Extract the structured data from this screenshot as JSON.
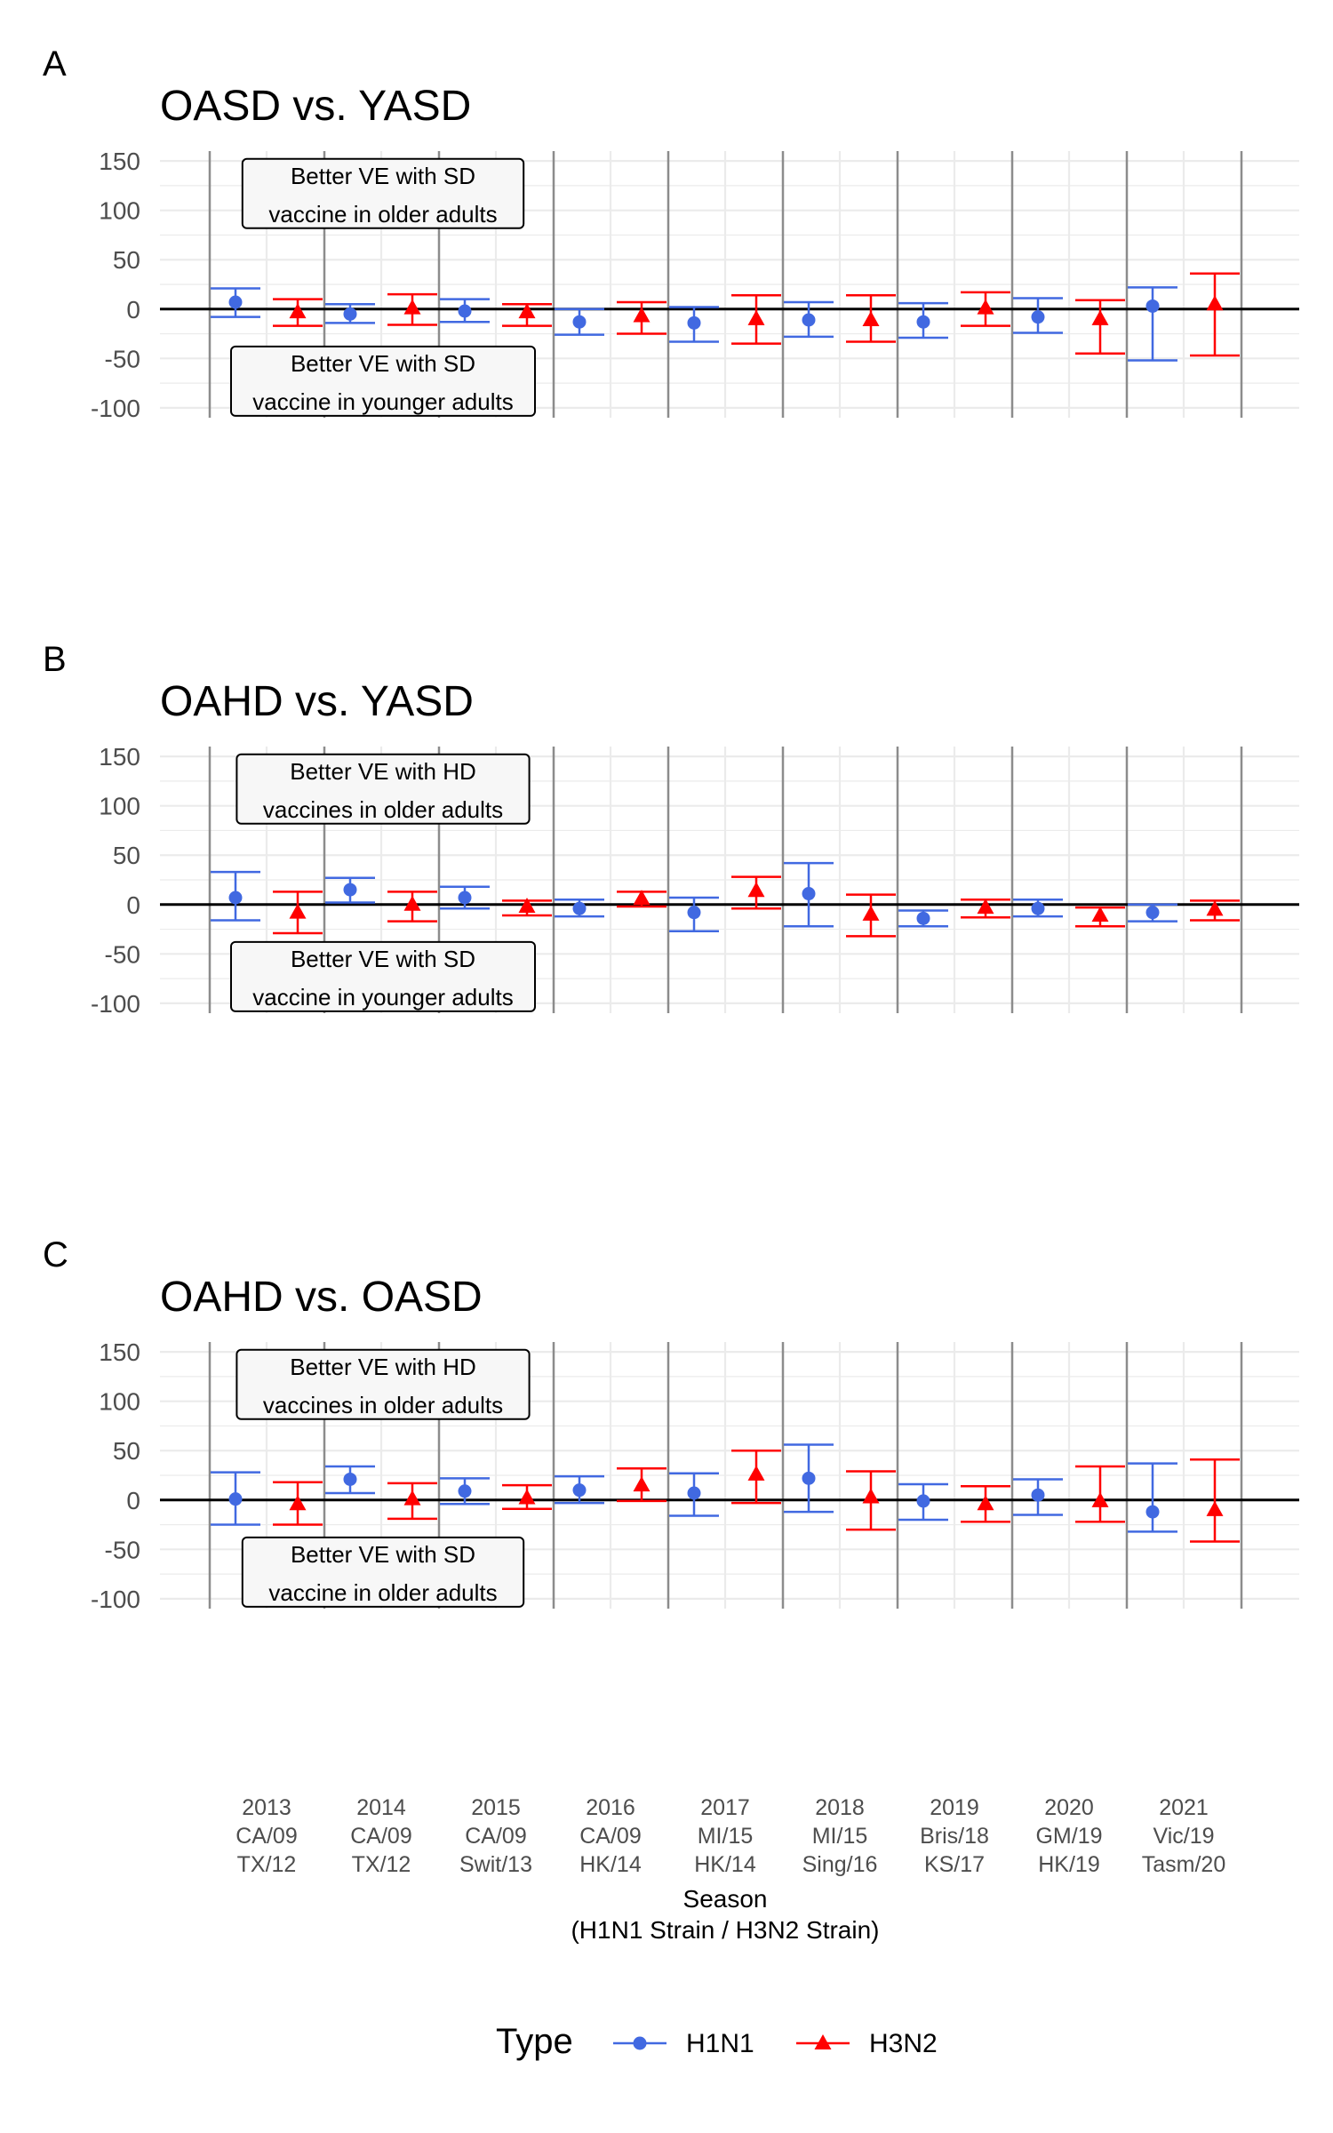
{
  "chart_data": [
    {
      "type": "errorbar",
      "panel_label": "A",
      "title": "OASD vs. YASD",
      "ylim": [
        -110,
        160
      ],
      "yticks": [
        150,
        100,
        50,
        0,
        -50,
        -100
      ],
      "annotations": [
        {
          "lines": [
            "Better VE with SD",
            "vaccine in older adults"
          ],
          "position": "top"
        },
        {
          "lines": [
            "Better VE with SD",
            "vaccine in younger adults"
          ],
          "position": "bottom"
        }
      ],
      "series": [
        {
          "name": "H1N1",
          "points": [
            {
              "est": 7,
              "lo": -8,
              "hi": 21
            },
            {
              "est": -5,
              "lo": -14,
              "hi": 5
            },
            {
              "est": -2,
              "lo": -13,
              "hi": 10
            },
            {
              "est": -13,
              "lo": -26,
              "hi": 0
            },
            {
              "est": -14,
              "lo": -33,
              "hi": 2
            },
            {
              "est": -11,
              "lo": -28,
              "hi": 7
            },
            {
              "est": -13,
              "lo": -29,
              "hi": 6
            },
            {
              "est": -8,
              "lo": -24,
              "hi": 11
            },
            {
              "est": 3,
              "lo": -52,
              "hi": 22
            }
          ]
        },
        {
          "name": "H3N2",
          "points": [
            {
              "est": -3,
              "lo": -17,
              "hi": 10
            },
            {
              "est": 1,
              "lo": -16,
              "hi": 15
            },
            {
              "est": -3,
              "lo": -17,
              "hi": 5
            },
            {
              "est": -7,
              "lo": -25,
              "hi": 7
            },
            {
              "est": -10,
              "lo": -35,
              "hi": 14
            },
            {
              "est": -11,
              "lo": -33,
              "hi": 14
            },
            {
              "est": 1,
              "lo": -17,
              "hi": 17
            },
            {
              "est": -10,
              "lo": -45,
              "hi": 9
            },
            {
              "est": 5,
              "lo": -47,
              "hi": 36
            }
          ]
        }
      ]
    },
    {
      "type": "errorbar",
      "panel_label": "B",
      "title": "OAHD vs. YASD",
      "ylim": [
        -110,
        160
      ],
      "yticks": [
        150,
        100,
        50,
        0,
        -50,
        -100
      ],
      "annotations": [
        {
          "lines": [
            "Better VE with HD",
            "vaccines in older adults"
          ],
          "position": "top"
        },
        {
          "lines": [
            "Better VE with SD",
            "vaccine in younger adults"
          ],
          "position": "bottom"
        }
      ],
      "series": [
        {
          "name": "H1N1",
          "points": [
            {
              "est": 7,
              "lo": -16,
              "hi": 33
            },
            {
              "est": 15,
              "lo": 2,
              "hi": 27
            },
            {
              "est": 7,
              "lo": -4,
              "hi": 18
            },
            {
              "est": -4,
              "lo": -12,
              "hi": 5
            },
            {
              "est": -8,
              "lo": -27,
              "hi": 7
            },
            {
              "est": 11,
              "lo": -22,
              "hi": 42
            },
            {
              "est": -14,
              "lo": -22,
              "hi": -6
            },
            {
              "est": -4,
              "lo": -12,
              "hi": 5
            },
            {
              "est": -8,
              "lo": -17,
              "hi": 0
            }
          ]
        },
        {
          "name": "H3N2",
          "points": [
            {
              "est": -8,
              "lo": -29,
              "hi": 13
            },
            {
              "est": 0,
              "lo": -17,
              "hi": 13
            },
            {
              "est": -2,
              "lo": -11,
              "hi": 4
            },
            {
              "est": 6,
              "lo": -2,
              "hi": 13
            },
            {
              "est": 14,
              "lo": -4,
              "hi": 28
            },
            {
              "est": -10,
              "lo": -32,
              "hi": 10
            },
            {
              "est": -3,
              "lo": -13,
              "hi": 5
            },
            {
              "est": -11,
              "lo": -22,
              "hi": -3
            },
            {
              "est": -5,
              "lo": -16,
              "hi": 4
            }
          ]
        }
      ]
    },
    {
      "type": "errorbar",
      "panel_label": "C",
      "title": "OAHD vs. OASD",
      "ylim": [
        -110,
        160
      ],
      "yticks": [
        150,
        100,
        50,
        0,
        -50,
        -100
      ],
      "annotations": [
        {
          "lines": [
            "Better VE with HD",
            "vaccines in older adults"
          ],
          "position": "top"
        },
        {
          "lines": [
            "Better VE with SD",
            "vaccine in older adults"
          ],
          "position": "bottom"
        }
      ],
      "series": [
        {
          "name": "H1N1",
          "points": [
            {
              "est": 1,
              "lo": -25,
              "hi": 28
            },
            {
              "est": 21,
              "lo": 7,
              "hi": 34
            },
            {
              "est": 9,
              "lo": -4,
              "hi": 22
            },
            {
              "est": 10,
              "lo": -3,
              "hi": 24
            },
            {
              "est": 7,
              "lo": -16,
              "hi": 27
            },
            {
              "est": 22,
              "lo": -12,
              "hi": 56
            },
            {
              "est": -1,
              "lo": -20,
              "hi": 16
            },
            {
              "est": 5,
              "lo": -15,
              "hi": 21
            },
            {
              "est": -12,
              "lo": -32,
              "hi": 37
            }
          ]
        },
        {
          "name": "H3N2",
          "points": [
            {
              "est": -4,
              "lo": -25,
              "hi": 18
            },
            {
              "est": 1,
              "lo": -19,
              "hi": 17
            },
            {
              "est": 2,
              "lo": -9,
              "hi": 15
            },
            {
              "est": 15,
              "lo": -1,
              "hi": 32
            },
            {
              "est": 26,
              "lo": -3,
              "hi": 50
            },
            {
              "est": 3,
              "lo": -30,
              "hi": 29
            },
            {
              "est": -4,
              "lo": -22,
              "hi": 14
            },
            {
              "est": -1,
              "lo": -22,
              "hi": 34
            },
            {
              "est": -10,
              "lo": -42,
              "hi": 41
            }
          ]
        }
      ]
    }
  ],
  "x_axis": {
    "categories": [
      [
        "2013",
        "CA/09",
        "TX/12"
      ],
      [
        "2014",
        "CA/09",
        "TX/12"
      ],
      [
        "2015",
        "CA/09",
        "Swit/13"
      ],
      [
        "2016",
        "CA/09",
        "HK/14"
      ],
      [
        "2017",
        "MI/15",
        "HK/14"
      ],
      [
        "2018",
        "MI/15",
        "Sing/16"
      ],
      [
        "2019",
        "Bris/18",
        "KS/17"
      ],
      [
        "2020",
        "GM/19",
        "HK/19"
      ],
      [
        "2021",
        "Vic/19",
        "Tasm/20"
      ]
    ],
    "xlabel": "Season",
    "xlabel_sub": "(H1N1 Strain / H3N2 Strain)"
  },
  "legend": {
    "title": "Type",
    "position": "bottom",
    "items": [
      {
        "name": "H1N1",
        "color": "#4169E1",
        "marker": "circle"
      },
      {
        "name": "H3N2",
        "color": "#FF0000",
        "marker": "triangle"
      }
    ]
  },
  "colors": {
    "H1N1": "#4169E1",
    "H3N2": "#FF0000",
    "separator": "#8c8c8c",
    "grid": "#ebebeb",
    "zero_line": "#000000"
  }
}
